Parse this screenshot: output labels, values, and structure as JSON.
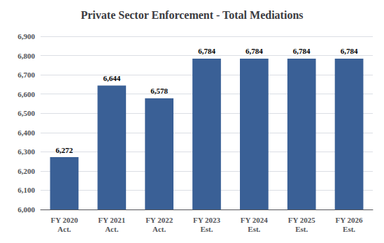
{
  "chart_data": {
    "type": "bar",
    "title": "Private Sector Enforcement - Total Mediations",
    "categories": [
      "FY 2020\nAct.",
      "FY 2021\nAct.",
      "FY 2022\nAct.",
      "FY 2023\nEst.",
      "FY 2024\nEst.",
      "FY 2025\nEst.",
      "FY 2026\nEst."
    ],
    "values": [
      6272,
      6644,
      6578,
      6784,
      6784,
      6784,
      6784
    ],
    "value_labels": [
      "6,272",
      "6,644",
      "6,578",
      "6,784",
      "6,784",
      "6,784",
      "6,784"
    ],
    "data_labels": true,
    "color": "#3A6096",
    "ylim": [
      6000,
      6900
    ],
    "yticks": [
      {
        "value": 6000,
        "label": "6,000"
      },
      {
        "value": 6100,
        "label": "6,100"
      },
      {
        "value": 6200,
        "label": "6,200"
      },
      {
        "value": 6300,
        "label": "6,300"
      },
      {
        "value": 6400,
        "label": "6,400"
      },
      {
        "value": 6500,
        "label": "6,500"
      },
      {
        "value": 6600,
        "label": "6,600"
      },
      {
        "value": 6700,
        "label": "6,700"
      },
      {
        "value": 6800,
        "label": "6,800"
      },
      {
        "value": 6900,
        "label": "6,900"
      }
    ],
    "grid": true
  }
}
